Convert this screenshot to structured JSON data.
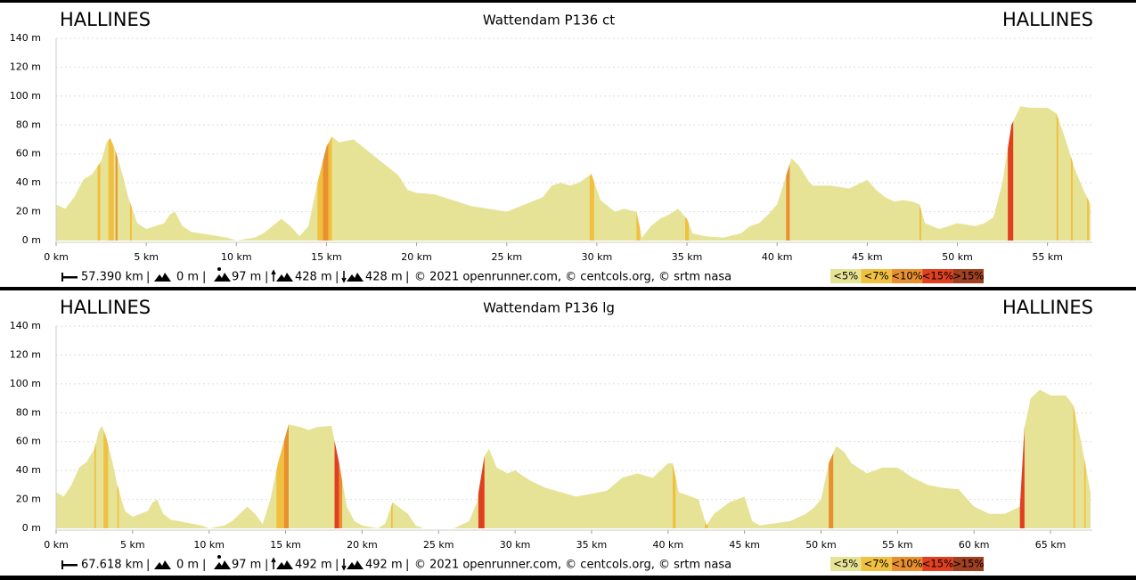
{
  "chart_data": [
    {
      "type": "area",
      "title": "Wattendam P136 ct",
      "start_label": "HALLINES",
      "end_label": "HALLINES",
      "color": "#e6e396",
      "grid": true,
      "xlim": [
        0,
        57.39
      ],
      "ylim": [
        0,
        140
      ],
      "xticks": [
        {
          "value": 0,
          "label": "0 km"
        },
        {
          "value": 5,
          "label": "5 km"
        },
        {
          "value": 10,
          "label": "10 km"
        },
        {
          "value": 15,
          "label": "15 km"
        },
        {
          "value": 20,
          "label": "20 km"
        },
        {
          "value": 25,
          "label": "25 km"
        },
        {
          "value": 30,
          "label": "30 km"
        },
        {
          "value": 35,
          "label": "35 km"
        },
        {
          "value": 40,
          "label": "40 km"
        },
        {
          "value": 45,
          "label": "45 km"
        },
        {
          "value": 50,
          "label": "50 km"
        },
        {
          "value": 55,
          "label": "55 km"
        }
      ],
      "yticks": [
        {
          "value": 0,
          "label": "0 m"
        },
        {
          "value": 20,
          "label": "20 m"
        },
        {
          "value": 40,
          "label": "40 m"
        },
        {
          "value": 60,
          "label": "60 m"
        },
        {
          "value": 80,
          "label": "80 m"
        },
        {
          "value": 100,
          "label": "100 m"
        },
        {
          "value": 120,
          "label": "120 m"
        },
        {
          "value": 140,
          "label": "140 m"
        }
      ],
      "x": [
        0,
        0.5,
        1,
        1.5,
        2,
        2.5,
        2.8,
        3,
        3.3,
        3.7,
        4,
        4.5,
        5,
        5.5,
        6,
        6.3,
        6.6,
        7,
        7.5,
        8,
        8.5,
        9,
        9.5,
        10,
        10.5,
        11,
        11.5,
        12,
        12.5,
        13,
        13.5,
        14,
        14.5,
        15,
        15.3,
        15.7,
        16.5,
        17,
        18,
        19,
        19.5,
        20,
        21,
        22,
        23,
        24,
        25,
        26,
        27,
        27.5,
        28,
        28.5,
        29,
        29.7,
        30.2,
        31,
        31.5,
        32.2,
        32.5,
        33,
        33.5,
        34,
        34.5,
        35,
        35.3,
        36,
        37,
        38,
        38.5,
        39,
        39.5,
        40,
        40.5,
        40.8,
        41.2,
        41.8,
        42,
        43,
        44,
        45,
        45.5,
        46,
        46.5,
        47,
        47.5,
        47.9,
        48.2,
        49,
        50,
        51,
        51.5,
        52,
        52.5,
        53,
        53.5,
        54,
        55,
        55.5,
        56,
        56.5,
        57,
        57.39
      ],
      "values": [
        25,
        22,
        30,
        42,
        46,
        55,
        68,
        71,
        62,
        45,
        30,
        12,
        8,
        10,
        12,
        18,
        20,
        10,
        6,
        5,
        4,
        3,
        2,
        0,
        1,
        2,
        5,
        10,
        15,
        10,
        3,
        10,
        40,
        65,
        72,
        68,
        70,
        65,
        55,
        45,
        35,
        33,
        32,
        28,
        24,
        22,
        20,
        25,
        30,
        38,
        40,
        38,
        40,
        46,
        28,
        20,
        22,
        20,
        2,
        10,
        15,
        18,
        22,
        15,
        5,
        3,
        2,
        5,
        10,
        12,
        18,
        25,
        45,
        57,
        52,
        40,
        38,
        38,
        36,
        42,
        35,
        30,
        27,
        28,
        27,
        25,
        12,
        8,
        12,
        10,
        12,
        16,
        40,
        80,
        93,
        92,
        92,
        88,
        70,
        50,
        35,
        25
      ],
      "sections": [
        {
          "from": 2.3,
          "to": 2.45,
          "color": "#f0c040"
        },
        {
          "from": 2.9,
          "to": 3.2,
          "color": "#f0c040"
        },
        {
          "from": 3.3,
          "to": 3.4,
          "color": "#e89030"
        },
        {
          "from": 4.1,
          "to": 4.2,
          "color": "#f0c040"
        },
        {
          "from": 14.5,
          "to": 14.8,
          "color": "#f0c040"
        },
        {
          "from": 14.8,
          "to": 15.1,
          "color": "#e89030"
        },
        {
          "from": 15.1,
          "to": 15.3,
          "color": "#f0c040"
        },
        {
          "from": 29.6,
          "to": 29.85,
          "color": "#f0c040"
        },
        {
          "from": 32.2,
          "to": 32.4,
          "color": "#f0c040"
        },
        {
          "from": 34.9,
          "to": 35.1,
          "color": "#f0c040"
        },
        {
          "from": 40.5,
          "to": 40.7,
          "color": "#e89030"
        },
        {
          "from": 47.9,
          "to": 48.0,
          "color": "#f0c040"
        },
        {
          "from": 52.8,
          "to": 53.1,
          "color": "#e04020"
        },
        {
          "from": 55.5,
          "to": 55.6,
          "color": "#f0c040"
        },
        {
          "from": 56.3,
          "to": 56.4,
          "color": "#f0c040"
        },
        {
          "from": 57.2,
          "to": 57.3,
          "color": "#f0c040"
        }
      ],
      "stats": {
        "distance": "57.390 km",
        "min": "0 m",
        "max": "97 m",
        "climb": "428 m",
        "descent": "428 m"
      },
      "separator": "|",
      "credit": "© 2021 openrunner.com, © centcols.org, © srtm nasa",
      "legend": {
        "labels": [
          "<5%",
          "<7%",
          "<10%",
          "<15%",
          ">15%"
        ],
        "colors": [
          "#e6e396",
          "#f0c040",
          "#e89030",
          "#e04020",
          "#a04020"
        ]
      }
    },
    {
      "type": "area",
      "title": "Wattendam P136 lg",
      "start_label": "HALLINES",
      "end_label": "HALLINES",
      "color": "#e6e396",
      "grid": true,
      "xlim": [
        0,
        67.618
      ],
      "ylim": [
        0,
        140
      ],
      "xticks": [
        {
          "value": 0,
          "label": "0 km"
        },
        {
          "value": 5,
          "label": "5 km"
        },
        {
          "value": 10,
          "label": "10 km"
        },
        {
          "value": 15,
          "label": "15 km"
        },
        {
          "value": 20,
          "label": "20 km"
        },
        {
          "value": 25,
          "label": "25 km"
        },
        {
          "value": 30,
          "label": "30 km"
        },
        {
          "value": 35,
          "label": "35 km"
        },
        {
          "value": 40,
          "label": "40 km"
        },
        {
          "value": 45,
          "label": "45 km"
        },
        {
          "value": 50,
          "label": "50 km"
        },
        {
          "value": 55,
          "label": "55 km"
        },
        {
          "value": 60,
          "label": "60 km"
        },
        {
          "value": 65,
          "label": "65 km"
        }
      ],
      "yticks": [
        {
          "value": 0,
          "label": "0 m"
        },
        {
          "value": 20,
          "label": "20 m"
        },
        {
          "value": 40,
          "label": "40 m"
        },
        {
          "value": 60,
          "label": "60 m"
        },
        {
          "value": 80,
          "label": "80 m"
        },
        {
          "value": 100,
          "label": "100 m"
        },
        {
          "value": 120,
          "label": "120 m"
        },
        {
          "value": 140,
          "label": "140 m"
        }
      ],
      "x": [
        0,
        0.5,
        1,
        1.5,
        2,
        2.5,
        2.8,
        3,
        3.3,
        3.7,
        4,
        4.5,
        5,
        5.5,
        6,
        6.3,
        6.6,
        7,
        7.5,
        8,
        8.5,
        9,
        9.5,
        10,
        10.5,
        11,
        11.5,
        12,
        12.5,
        13,
        13.5,
        14,
        14.5,
        15.2,
        16,
        16.5,
        17,
        18,
        18.5,
        19,
        19.5,
        20,
        21,
        21.5,
        22,
        23,
        23.5,
        24,
        26,
        27,
        27.5,
        28,
        28.3,
        28.8,
        29.5,
        30,
        31,
        32,
        33,
        34,
        35,
        36,
        37,
        38,
        39,
        40,
        40.3,
        40.7,
        41.5,
        42,
        42.5,
        43,
        44,
        45,
        45.5,
        46,
        48,
        49,
        49.5,
        50,
        50.5,
        51,
        51.5,
        52,
        53,
        54,
        55,
        56,
        57,
        58,
        59,
        60,
        61,
        62,
        63,
        63.3,
        63.7,
        64.3,
        65,
        66,
        66.5,
        67,
        67.618
      ],
      "values": [
        25,
        22,
        30,
        42,
        46,
        55,
        68,
        71,
        62,
        45,
        30,
        12,
        8,
        10,
        12,
        18,
        20,
        10,
        6,
        5,
        4,
        3,
        2,
        0,
        1,
        2,
        5,
        10,
        15,
        10,
        3,
        20,
        45,
        72,
        70,
        68,
        70,
        71,
        45,
        15,
        5,
        2,
        0,
        3,
        18,
        10,
        2,
        0,
        0,
        5,
        18,
        50,
        55,
        42,
        38,
        40,
        33,
        28,
        25,
        22,
        24,
        26,
        35,
        38,
        35,
        45,
        45,
        25,
        22,
        20,
        2,
        10,
        18,
        22,
        5,
        2,
        5,
        10,
        14,
        20,
        45,
        57,
        53,
        45,
        38,
        42,
        42,
        35,
        30,
        28,
        27,
        15,
        10,
        10,
        15,
        70,
        90,
        96,
        92,
        92,
        85,
        60,
        25
      ],
      "sections": [
        {
          "from": 2.5,
          "to": 2.6,
          "color": "#f0c040"
        },
        {
          "from": 3.1,
          "to": 3.4,
          "color": "#f0c040"
        },
        {
          "from": 4.0,
          "to": 4.1,
          "color": "#f0c040"
        },
        {
          "from": 14.4,
          "to": 14.9,
          "color": "#f0c040"
        },
        {
          "from": 14.9,
          "to": 15.2,
          "color": "#e89030"
        },
        {
          "from": 18.2,
          "to": 18.5,
          "color": "#e04020"
        },
        {
          "from": 18.5,
          "to": 18.7,
          "color": "#e89030"
        },
        {
          "from": 21.9,
          "to": 22.0,
          "color": "#f0c040"
        },
        {
          "from": 27.6,
          "to": 28.0,
          "color": "#e04020"
        },
        {
          "from": 40.3,
          "to": 40.5,
          "color": "#f0c040"
        },
        {
          "from": 42.4,
          "to": 42.6,
          "color": "#f0c040"
        },
        {
          "from": 50.5,
          "to": 50.8,
          "color": "#e89030"
        },
        {
          "from": 63.0,
          "to": 63.3,
          "color": "#e04020"
        },
        {
          "from": 66.5,
          "to": 66.6,
          "color": "#f0c040"
        },
        {
          "from": 67.2,
          "to": 67.3,
          "color": "#f0c040"
        }
      ],
      "stats": {
        "distance": "67.618 km",
        "min": "0 m",
        "max": "97 m",
        "climb": "492 m",
        "descent": "492 m"
      },
      "separator": "|",
      "credit": "© 2021 openrunner.com, © centcols.org, © srtm nasa",
      "legend": {
        "labels": [
          "<5%",
          "<7%",
          "<10%",
          "<15%",
          ">15%"
        ],
        "colors": [
          "#e6e396",
          "#f0c040",
          "#e89030",
          "#e04020",
          "#a04020"
        ]
      }
    }
  ]
}
